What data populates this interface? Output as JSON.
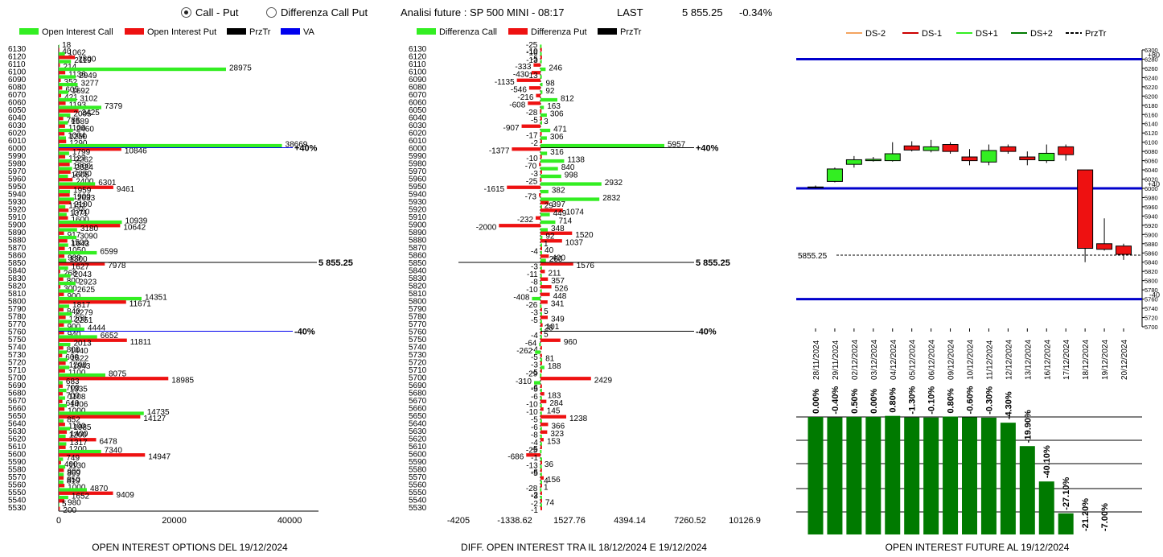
{
  "header": {
    "radio_call_put": "Call - Put",
    "radio_diff": "Differenza Call Put",
    "title": "Analisi future : SP 500 MINI - 08:17",
    "last_label": "LAST",
    "last_value": "5 855.25",
    "last_change": "-0.34%"
  },
  "colors": {
    "green": "#33ee22",
    "red": "#ee1111",
    "black": "#000000",
    "blue": "#0000ee",
    "dark_green": "#007a00",
    "orange": "#f4a460",
    "dark_red": "#cc0000"
  },
  "chart_data": [
    {
      "type": "bar",
      "orientation": "horizontal",
      "title": "OPEN INTEREST OPTIONS DEL 19/12/2024",
      "legend": [
        "Open Interest Call",
        "Open Interest Put",
        "PrzTr",
        "VA"
      ],
      "strikes": [
        6130,
        6120,
        6110,
        6100,
        6090,
        6080,
        6070,
        6060,
        6050,
        6040,
        6030,
        6020,
        6010,
        6000,
        5990,
        5980,
        5970,
        5960,
        5950,
        5940,
        5930,
        5920,
        5910,
        5900,
        5890,
        5880,
        5870,
        5860,
        5850,
        5840,
        5830,
        5820,
        5810,
        5800,
        5790,
        5780,
        5770,
        5760,
        5750,
        5740,
        5730,
        5720,
        5710,
        5700,
        5690,
        5680,
        5670,
        5660,
        5650,
        5640,
        5630,
        5620,
        5610,
        5600,
        5590,
        5580,
        5570,
        5560,
        5550,
        5540,
        5530
      ],
      "series": [
        {
          "name": "Open Interest Call",
          "values": [
            18,
            1062,
            2119,
            28975,
            2949,
            3277,
            1692,
            3102,
            7379,
            2005,
            1589,
            2460,
            1250,
            38669,
            1799,
            2262,
            2324,
            1605,
            6301,
            1959,
            2633,
            1152,
            1371,
            10939,
            3180,
            3090,
            1643,
            6599,
            1300,
            1627,
            2043,
            2923,
            2625,
            14351,
            1817,
            2279,
            2251,
            4444,
            6652,
            2013,
            1440,
            1522,
            1843,
            8075,
            683,
            1335,
            1108,
            1406,
            14735,
            852,
            1985,
            1200,
            1317,
            7340,
            749,
            1130,
            869,
            819,
            4870,
            1652,
            5
          ]
        },
        {
          "name": "Open Interest Put",
          "values": [
            40,
            2800,
            214,
            1136,
            352,
            605,
            421,
            1193,
            3425,
            786,
            1100,
            1004,
            1290,
            10846,
            1127,
            1900,
            2050,
            2400,
            9461,
            1900,
            2100,
            1700,
            1600,
            10642,
            917,
            1500,
            1050,
            989,
            7978,
            268,
            800,
            300,
            900,
            11671,
            840,
            1200,
            900,
            940,
            11811,
            800,
            600,
            1200,
            1100,
            18985,
            700,
            700,
            640,
            1000,
            14127,
            1100,
            1400,
            6478,
            1200,
            14947,
            400,
            900,
            850,
            1000,
            9409,
            980,
            200
          ]
        }
      ],
      "xticks": [
        "0",
        "20000",
        "40000"
      ],
      "xlim": [
        0,
        45000
      ],
      "ref_lines": [
        {
          "strike": 6000,
          "label": "+40%"
        },
        {
          "strike": 5850,
          "label": "5 855.25"
        },
        {
          "strike": 5760,
          "label": "-40%"
        }
      ]
    },
    {
      "type": "bar",
      "orientation": "horizontal",
      "title": "DIFF. OPEN INTEREST TRA IL 18/12/2024 E 19/12/2024",
      "legend": [
        "Differenza Call",
        "Differenza Put",
        "PrzTr"
      ],
      "strikes": [
        6130,
        6120,
        6110,
        6100,
        6090,
        6080,
        6070,
        6060,
        6050,
        6040,
        6030,
        6020,
        6010,
        6000,
        5990,
        5980,
        5970,
        5960,
        5950,
        5940,
        5930,
        5920,
        5910,
        5900,
        5890,
        5880,
        5870,
        5860,
        5850,
        5840,
        5830,
        5820,
        5810,
        5800,
        5790,
        5780,
        5770,
        5760,
        5750,
        5740,
        5730,
        5720,
        5710,
        5700,
        5690,
        5680,
        5670,
        5660,
        5650,
        5640,
        5630,
        5620,
        5610,
        5600,
        5590,
        5580,
        5570,
        5560,
        5550,
        5540,
        5530
      ],
      "series": [
        {
          "name": "Differenza Call",
          "values": [
            -25,
            -16,
            -13,
            246,
            -13,
            98,
            92,
            812,
            163,
            306,
            3,
            471,
            306,
            5957,
            316,
            1138,
            840,
            998,
            2932,
            382,
            2832,
            29,
            449,
            714,
            348,
            92,
            1,
            -4,
            260,
            -3,
            -11,
            -8,
            -10,
            -408,
            -26,
            -3,
            -5,
            28,
            -4,
            -64,
            -262,
            81,
            188,
            -29,
            -310,
            -5,
            -6,
            -10,
            -10,
            -5,
            -6,
            -8,
            -4,
            -25,
            -1,
            -13,
            -5,
            4,
            -28,
            -3,
            -2
          ]
        },
        {
          "name": "Differenza Put",
          "values": [
            -10,
            -5,
            -333,
            -430,
            -1135,
            -546,
            -216,
            -608,
            -28,
            -5,
            -907,
            -17,
            -2,
            -1377,
            -10,
            -70,
            -3,
            -25,
            -1615,
            -73,
            397,
            1074,
            -232,
            -2000,
            1520,
            1037,
            40,
            400,
            1576,
            211,
            357,
            526,
            448,
            341,
            5,
            349,
            101,
            5,
            960,
            -4,
            -5,
            -3,
            -5,
            2429,
            -6,
            183,
            284,
            145,
            1238,
            366,
            323,
            153,
            -5,
            -686,
            36,
            -6,
            156,
            1,
            -2,
            74,
            -1
          ]
        }
      ],
      "xticks": [
        "-4205",
        "-1338.62",
        "1527.76",
        "4394.14",
        "7260.52",
        "10126.9"
      ],
      "xlim": [
        -4205,
        10126.9
      ],
      "ref_lines": [
        {
          "strike": 6000,
          "label": "+40%"
        },
        {
          "strike": 5850,
          "label": "5 855.25"
        },
        {
          "strike": 5760,
          "label": "-40%"
        }
      ]
    },
    {
      "type": "candlestick",
      "legend": [
        "DS-2",
        "DS-1",
        "DS+1",
        "DS+2",
        "PrzTr"
      ],
      "dates": [
        "28/11/2024",
        "29/11/2024",
        "02/12/2024",
        "03/12/2024",
        "04/12/2024",
        "05/12/2024",
        "06/12/2024",
        "09/12/2024",
        "10/12/2024",
        "11/12/2024",
        "12/12/2024",
        "13/12/2024",
        "16/12/2024",
        "17/12/2024",
        "18/12/2024",
        "19/12/2024",
        "20/12/2024"
      ],
      "open": [
        6003,
        6015,
        6052,
        6060,
        6060,
        6092,
        6082,
        6095,
        6068,
        6057,
        6090,
        6068,
        6060,
        6090,
        6040,
        5880,
        5875
      ],
      "close": [
        6003,
        6042,
        6062,
        6063,
        6075,
        6083,
        6090,
        6080,
        6060,
        6082,
        6080,
        6062,
        6076,
        6073,
        5870,
        5868,
        5857
      ],
      "high": [
        6006,
        6045,
        6070,
        6068,
        6100,
        6102,
        6105,
        6100,
        6085,
        6095,
        6095,
        6080,
        6095,
        6095,
        6040,
        5935,
        5880
      ],
      "low": [
        6000,
        6013,
        6045,
        6058,
        6058,
        6080,
        6078,
        6075,
        6050,
        6050,
        6075,
        6050,
        6055,
        6060,
        5840,
        5865,
        5845
      ],
      "ylim": [
        5700,
        6300
      ],
      "yticks": [
        6300,
        6280,
        6260,
        6240,
        6220,
        6200,
        6180,
        6160,
        6140,
        6120,
        6100,
        6080,
        6060,
        6040,
        6020,
        6000,
        5980,
        5960,
        5940,
        5920,
        5900,
        5880,
        5860,
        5840,
        5820,
        5800,
        5780,
        5760,
        5740,
        5720,
        5700
      ],
      "hlines": [
        {
          "value": 6280,
          "label": "+80",
          "color": "#0000cc"
        },
        {
          "value": 6000,
          "label": "+40",
          "color": "#0000cc"
        },
        {
          "value": 5760,
          "label": "-40",
          "color": "#0000cc"
        }
      ],
      "last_label": "5855.25",
      "last_value": 5855.25
    },
    {
      "type": "bar",
      "title": "OPEN INTEREST FUTURE AL 19/12/2024",
      "categories": [
        "28/11/2024",
        "29/11/2024",
        "02/12/2024",
        "03/12/2024",
        "04/12/2024",
        "05/12/2024",
        "06/12/2024",
        "09/12/2024",
        "10/12/2024",
        "11/12/2024",
        "12/12/2024",
        "13/12/2024",
        "16/12/2024",
        "17/12/2024",
        "18/12/2024",
        "19/12/2024",
        "20/12/2024"
      ],
      "labels": [
        "0.00%",
        "-0.40%",
        "0.50%",
        "0.00%",
        "0.80%",
        "-1.30%",
        "-0.10%",
        "0.80%",
        "-0.60%",
        "-0.30%",
        "-4.30%",
        "-19.90%",
        "-40.10%",
        "-27.10%",
        "-21.20%",
        "-7.00%",
        ""
      ],
      "values": [
        100,
        99.6,
        100.1,
        100.1,
        100.9,
        99.6,
        99.5,
        100.3,
        99.7,
        99.4,
        95.1,
        75.2,
        45.1,
        18.0,
        -3.2,
        -10.2,
        0
      ]
    }
  ]
}
